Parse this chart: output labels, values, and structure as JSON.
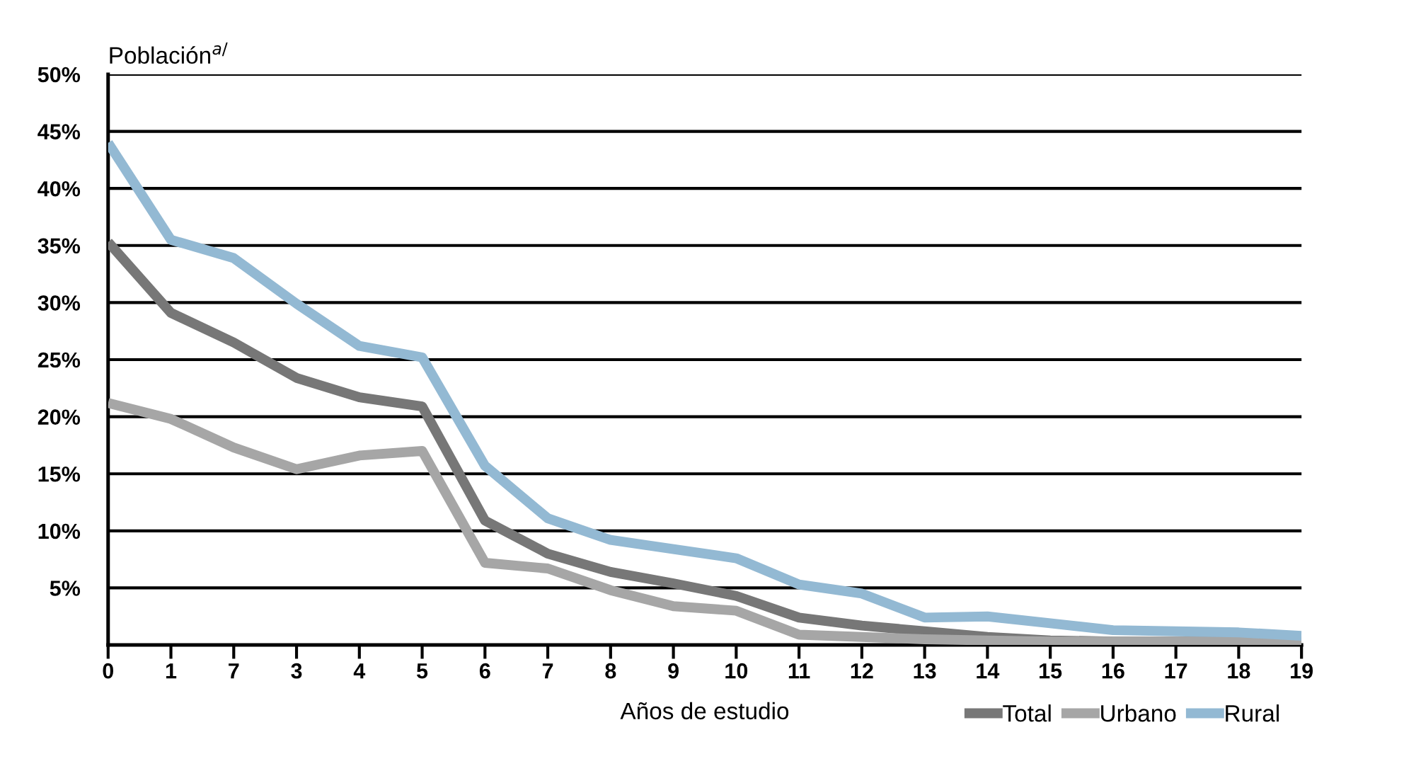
{
  "chart_data": {
    "type": "line",
    "ylabel": "Población$^{a/}$",
    "xlabel": "Años de estudio",
    "categories": [
      "0",
      "1",
      "7",
      "3",
      "4",
      "5",
      "6",
      "7",
      "8",
      "9",
      "10",
      "11",
      "12",
      "13",
      "14",
      "15",
      "16",
      "17",
      "18",
      "19"
    ],
    "series": [
      {
        "name": "Total",
        "color": "#777777",
        "values": [
          35.3,
          29.1,
          26.5,
          23.4,
          21.7,
          20.9,
          10.9,
          8.0,
          6.4,
          5.4,
          4.3,
          2.4,
          1.7,
          1.2,
          0.7,
          0.4,
          0.3,
          0.3,
          0.3,
          0.3
        ]
      },
      {
        "name": "Urbano",
        "color": "#a6a6a6",
        "values": [
          21.2,
          19.8,
          17.3,
          15.4,
          16.6,
          17.0,
          7.2,
          6.7,
          4.8,
          3.4,
          3.0,
          0.9,
          0.7,
          0.5,
          0.4,
          0.3,
          0.3,
          0.3,
          0.3,
          0.3
        ]
      },
      {
        "name": "Rural",
        "color": "#93b9d3",
        "values": [
          44.0,
          35.5,
          33.9,
          29.9,
          26.2,
          25.2,
          15.7,
          11.1,
          9.2,
          8.4,
          7.6,
          5.3,
          4.5,
          2.4,
          2.5,
          1.9,
          1.3,
          1.2,
          1.1,
          0.8
        ]
      }
    ],
    "ylim": [
      0,
      50
    ],
    "yticks": [
      {
        "value": 5,
        "label": "5%"
      },
      {
        "value": 10,
        "label": "10%"
      },
      {
        "value": 15,
        "label": "15%"
      },
      {
        "value": 20,
        "label": "20%"
      },
      {
        "value": 25,
        "label": "25%"
      },
      {
        "value": 30,
        "label": "30%"
      },
      {
        "value": 35,
        "label": "35%"
      },
      {
        "value": 40,
        "label": "40%"
      },
      {
        "value": 45,
        "label": "45%"
      },
      {
        "value": 50,
        "label": "50%"
      }
    ],
    "grid": "y",
    "legend": "bottom right",
    "marker": "none",
    "line_style": "solid"
  }
}
